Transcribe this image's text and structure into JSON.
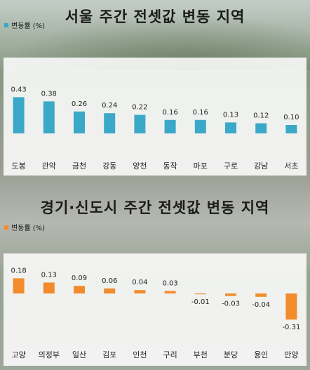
{
  "chart_data": [
    {
      "type": "bar",
      "title": "서울  주간 전셋값 변동 지역",
      "legend": "변동률 (%)",
      "color": "#3ba8c8",
      "categories": [
        "도봉",
        "관악",
        "금천",
        "강동",
        "양천",
        "동작",
        "마포",
        "구로",
        "강남",
        "서초"
      ],
      "values": [
        0.43,
        0.38,
        0.26,
        0.24,
        0.22,
        0.16,
        0.16,
        0.13,
        0.12,
        0.1
      ],
      "labels": [
        "0.43",
        "0.38",
        "0.26",
        "0.24",
        "0.22",
        "0.16",
        "0.16",
        "0.13",
        "0.12",
        "0.10"
      ],
      "ylim": [
        0,
        0.5
      ]
    },
    {
      "type": "bar",
      "title": "경기·신도시 주간 전셋값 변동 지역",
      "legend": "변동률 (%)",
      "color": "#f28b2c",
      "categories": [
        "고양",
        "의정부",
        "일산",
        "김포",
        "인천",
        "구리",
        "부천",
        "분당",
        "용인",
        "안양"
      ],
      "values": [
        0.18,
        0.13,
        0.09,
        0.06,
        0.04,
        0.03,
        -0.01,
        -0.03,
        -0.04,
        -0.31
      ],
      "labels": [
        "0.18",
        "0.13",
        "0.09",
        "0.06",
        "0.04",
        "0.03",
        "-0.01",
        "-0.03",
        "-0.04",
        "-0.31"
      ],
      "ylim": [
        -0.35,
        0.2
      ]
    }
  ]
}
